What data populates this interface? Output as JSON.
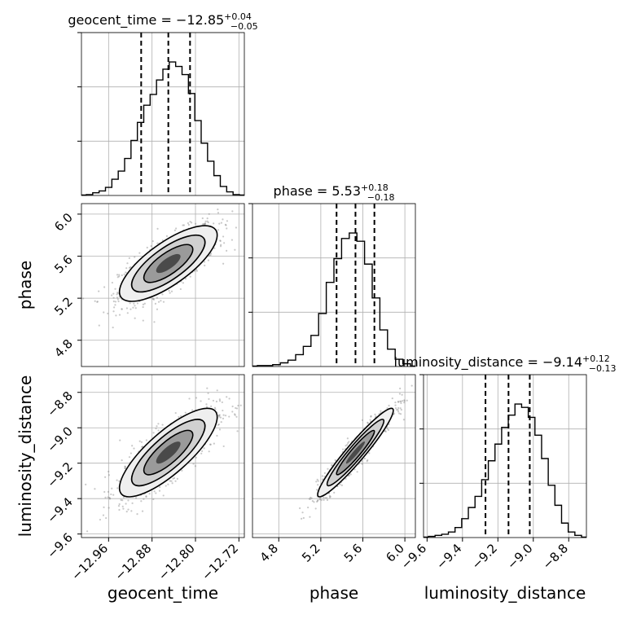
{
  "chart_data": {
    "type": "corner",
    "parameters": [
      "geocent_time",
      "phase",
      "luminosity_distance"
    ],
    "titles": [
      {
        "param": "geocent_time",
        "text": "geocent_time = −12.85",
        "sup": "+0.04",
        "sub": "−0.05",
        "median": -12.85,
        "plus": 0.04,
        "minus": 0.05
      },
      {
        "param": "phase",
        "text": "phase = 5.53",
        "sup": "+0.18",
        "sub": "−0.18",
        "median": 5.53,
        "plus": 0.18,
        "minus": 0.18
      },
      {
        "param": "luminosity_distance",
        "text": "luminosity_distance = −9.14",
        "sup": "+0.12",
        "sub": "−0.13",
        "median": -9.14,
        "plus": 0.12,
        "minus": 0.13
      }
    ],
    "ranges": {
      "geocent_time": [
        -13.01,
        -12.71
      ],
      "phase": [
        4.55,
        6.1
      ],
      "luminosity_distance": [
        -9.62,
        -8.7
      ]
    },
    "ticks": {
      "geocent_time": [
        {
          "value": -12.96,
          "label": "−12.96"
        },
        {
          "value": -12.88,
          "label": "−12.88"
        },
        {
          "value": -12.8,
          "label": "−12.80"
        },
        {
          "value": -12.72,
          "label": "−12.72"
        }
      ],
      "phase": [
        {
          "value": 4.8,
          "label": "4.8"
        },
        {
          "value": 5.2,
          "label": "5.2"
        },
        {
          "value": 5.6,
          "label": "5.6"
        },
        {
          "value": 6.0,
          "label": "6.0"
        }
      ],
      "luminosity_distance": [
        {
          "value": -9.6,
          "label": "−9.6"
        },
        {
          "value": -9.4,
          "label": "−9.4"
        },
        {
          "value": -9.2,
          "label": "−9.2"
        },
        {
          "value": -9.0,
          "label": "−9.0"
        },
        {
          "value": -8.8,
          "label": "−8.8"
        }
      ]
    },
    "histograms": {
      "geocent_time": [
        1,
        3,
        5,
        9,
        18,
        27,
        41,
        61,
        81,
        100,
        112,
        128,
        140,
        148,
        143,
        134,
        113,
        83,
        58,
        38,
        22,
        10,
        4,
        1
      ],
      "phase": [
        1,
        1,
        2,
        4,
        7,
        13,
        22,
        34,
        58,
        92,
        118,
        140,
        146,
        137,
        112,
        75,
        40,
        19,
        8,
        3
      ],
      "luminosity_distance": [
        1,
        2,
        3,
        5,
        9,
        17,
        27,
        37,
        52,
        69,
        84,
        99,
        110,
        120,
        117,
        108,
        92,
        71,
        47,
        29,
        13,
        5,
        2
      ]
    },
    "correlations": {
      "geocent_time__phase": 0.75,
      "geocent_time__luminosity_distance": 0.8,
      "phase__luminosity_distance": 0.95
    },
    "quantile_lines": "dashed",
    "grid": true
  }
}
